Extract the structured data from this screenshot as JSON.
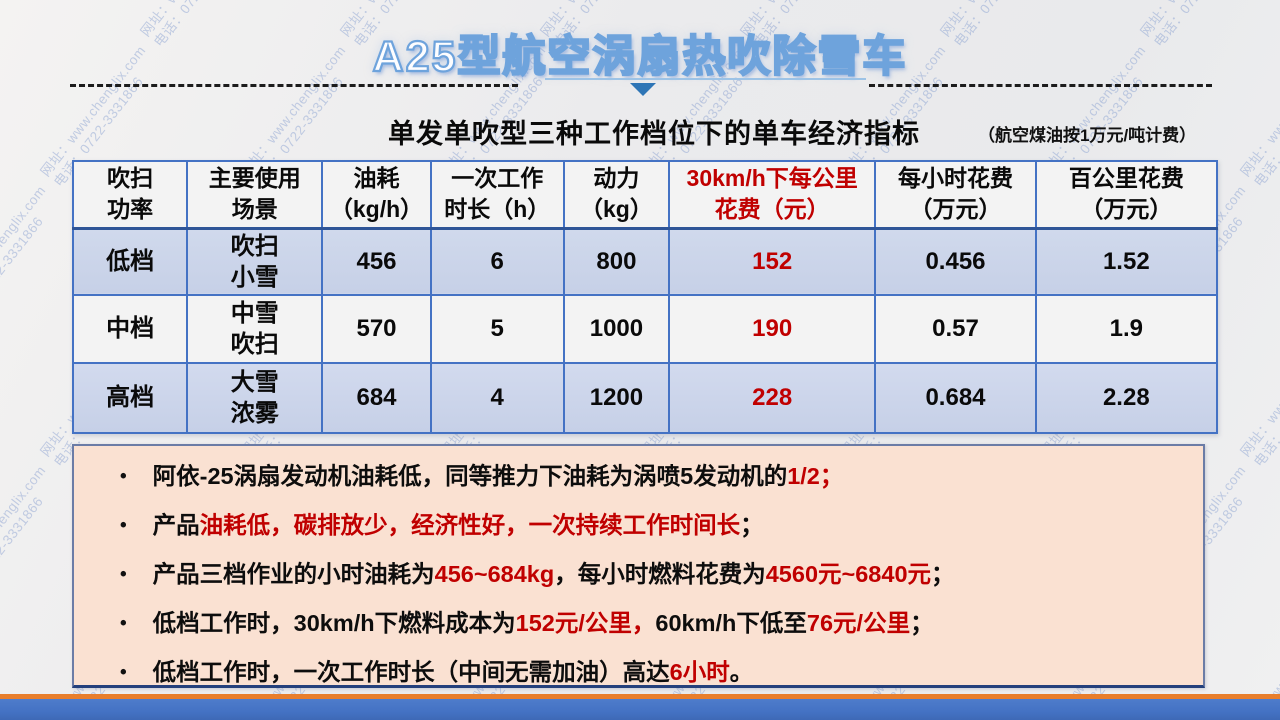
{
  "title": "A25型航空涡扇热吹除雪车",
  "subtitle": "单发单吹型三种工作档位下的单车经济指标",
  "subtitle_note": "（航空煤油按1万元/吨计费）",
  "watermark": {
    "line1": "网址：www.chenglix.com",
    "line2": "电话：0722-3331866"
  },
  "table": {
    "header": [
      "吹扫\n功率",
      "主要使用\n场景",
      "油耗\n（kg/h）",
      "一次工作\n时长（h）",
      "动力\n（kg）",
      "30km/h下每公里\n花费（元）",
      "每小时花费\n（万元）",
      "百公里花费\n（万元）"
    ],
    "rows": [
      [
        "低档",
        "吹扫\n小雪",
        "456",
        "6",
        "800",
        "152",
        "0.456",
        "1.52"
      ],
      [
        "中档",
        "中雪\n吹扫",
        "570",
        "5",
        "1000",
        "190",
        "0.57",
        "1.9"
      ],
      [
        "高档",
        "大雪\n浓雾",
        "684",
        "4",
        "1200",
        "228",
        "0.684",
        "2.28"
      ]
    ]
  },
  "bullets": [
    [
      {
        "t": "阿依-25涡扇发动机油耗低，同等推力下油耗为涡喷5发动机的"
      },
      {
        "t": "1/2；",
        "red": true
      }
    ],
    [
      {
        "t": "产品"
      },
      {
        "t": "油耗低，碳排放少，经济性好，一次持续工作时间长",
        "red": true
      },
      {
        "t": "；"
      }
    ],
    [
      {
        "t": "产品三档作业的小时油耗为"
      },
      {
        "t": "456~684kg",
        "red": true
      },
      {
        "t": "，每小时燃料花费为"
      },
      {
        "t": "4560元~6840元",
        "red": true
      },
      {
        "t": "；"
      }
    ],
    [
      {
        "t": "低档工作时，30km/h下燃料成本为"
      },
      {
        "t": "152元/公里，",
        "red": true
      },
      {
        "t": "60km/h下低至"
      },
      {
        "t": "76元/公里",
        "red": true
      },
      {
        "t": "；"
      }
    ],
    [
      {
        "t": "低档工作时，一次工作时长（中间无需加油）高达"
      },
      {
        "t": "6小时",
        "red": true
      },
      {
        "t": "。"
      }
    ]
  ],
  "colors": {
    "red": "#c00000",
    "table_border": "#4472c4",
    "header_separator": "#2f5597",
    "row_alt_bg": "#cbd4e9",
    "row_bg": "#f3f3f3",
    "notes_box_bg": "#fae1d2",
    "notes_box_border": "#6b7ca6",
    "bottom_orange": "#e87e2c",
    "bottom_blue": "#4472c4",
    "watermark_blue": "#7d96cd",
    "title_outline_blue": "#6ea3dc",
    "triangle_blue": "#2e75b6"
  }
}
